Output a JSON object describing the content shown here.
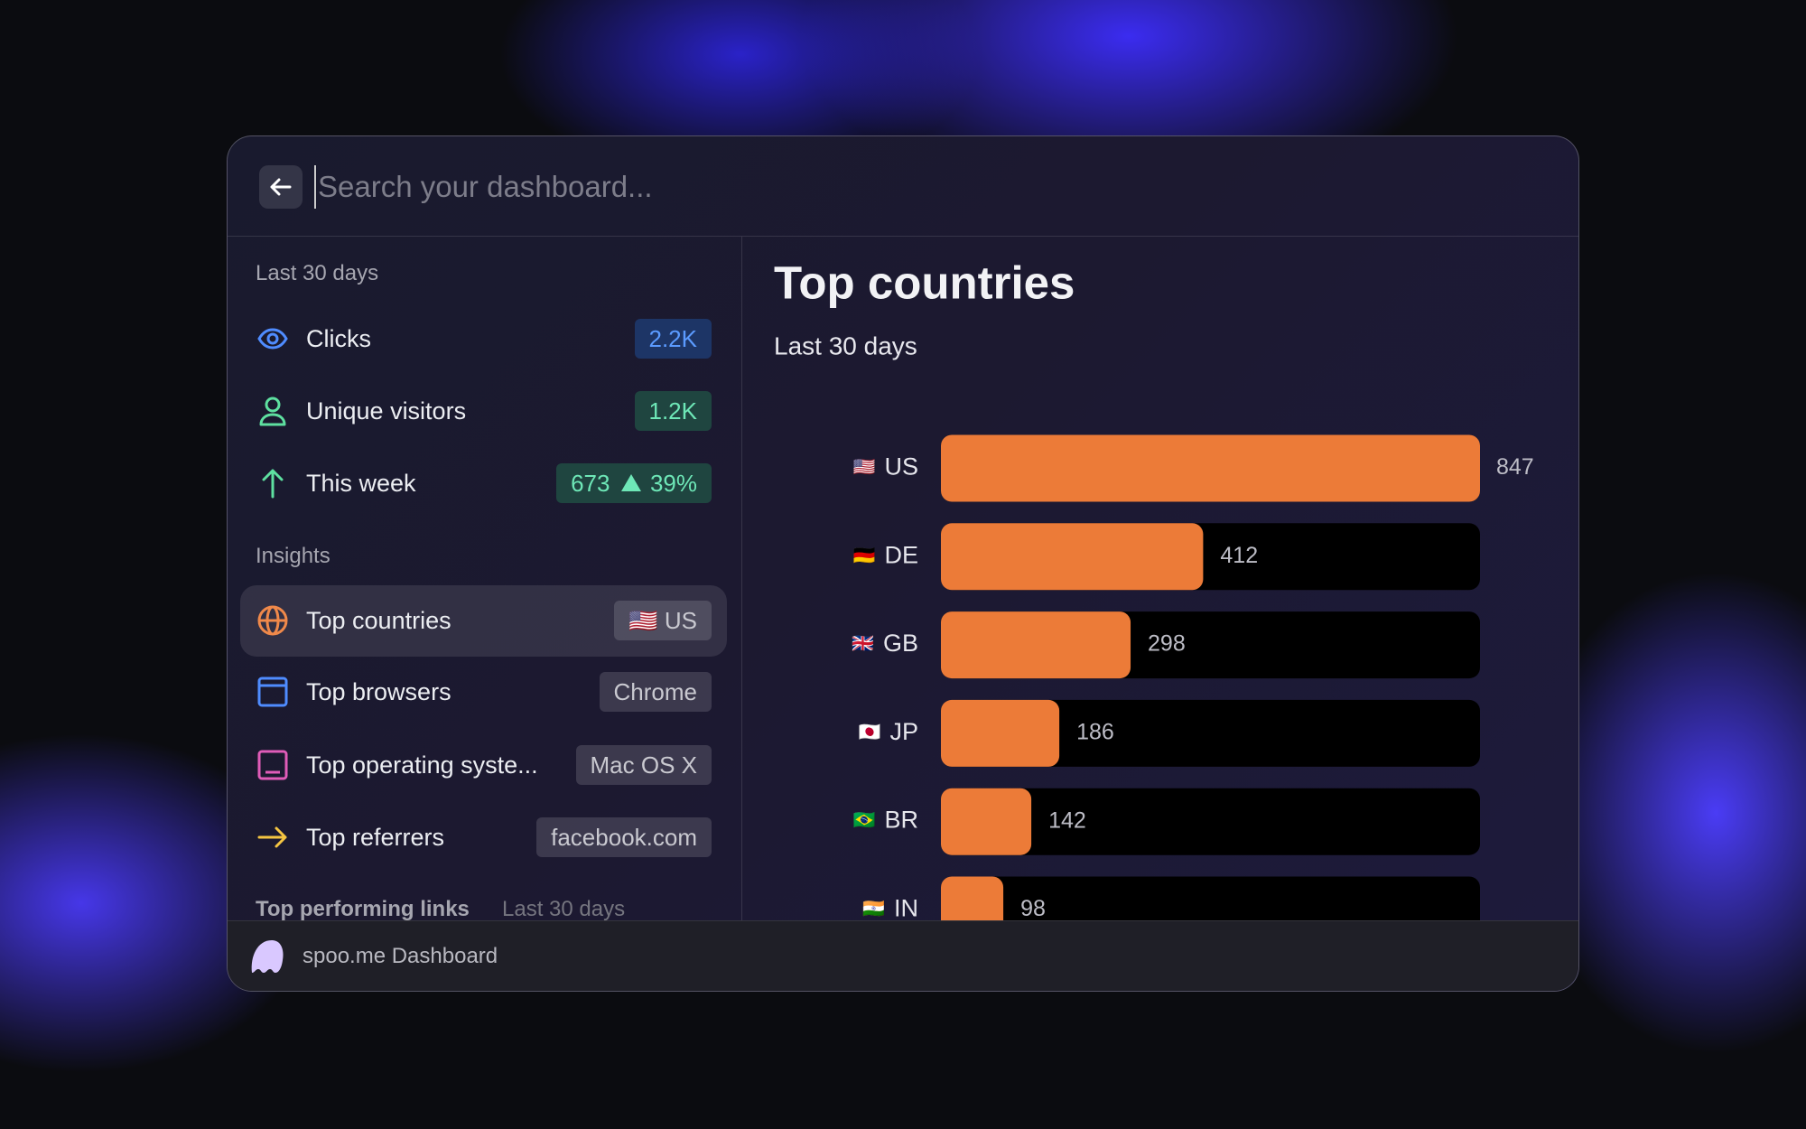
{
  "search": {
    "placeholder": "Search your dashboard..."
  },
  "sidebar": {
    "summary": {
      "title": "Last 30 days",
      "items": [
        {
          "label": "Clicks",
          "badge": "2.2K"
        },
        {
          "label": "Unique visitors",
          "badge": "1.2K"
        },
        {
          "label": "This week",
          "badge": "673",
          "change": "39%"
        }
      ]
    },
    "insights": {
      "title": "Insights",
      "items": [
        {
          "label": "Top countries",
          "badge_flag": "🇺🇸",
          "badge": "US"
        },
        {
          "label": "Top browsers",
          "badge": "Chrome"
        },
        {
          "label": "Top operating syste...",
          "badge": "Mac OS X"
        },
        {
          "label": "Top referrers",
          "badge": "facebook.com"
        }
      ]
    },
    "links": {
      "title": "Top performing links",
      "subtitle": "Last 30 days"
    }
  },
  "footer": {
    "label": "spoo.me Dashboard"
  },
  "chart_data": {
    "type": "bar",
    "orientation": "horizontal",
    "title": "Top countries",
    "subtitle": "Last 30 days",
    "categories": [
      "US",
      "DE",
      "GB",
      "JP",
      "BR",
      "IN"
    ],
    "flags": [
      "🇺🇸",
      "🇩🇪",
      "🇬🇧",
      "🇯🇵",
      "🇧🇷",
      "🇮🇳"
    ],
    "values": [
      847,
      412,
      298,
      186,
      142,
      98
    ],
    "color": "#ec7b38",
    "track_color": "#000000"
  }
}
